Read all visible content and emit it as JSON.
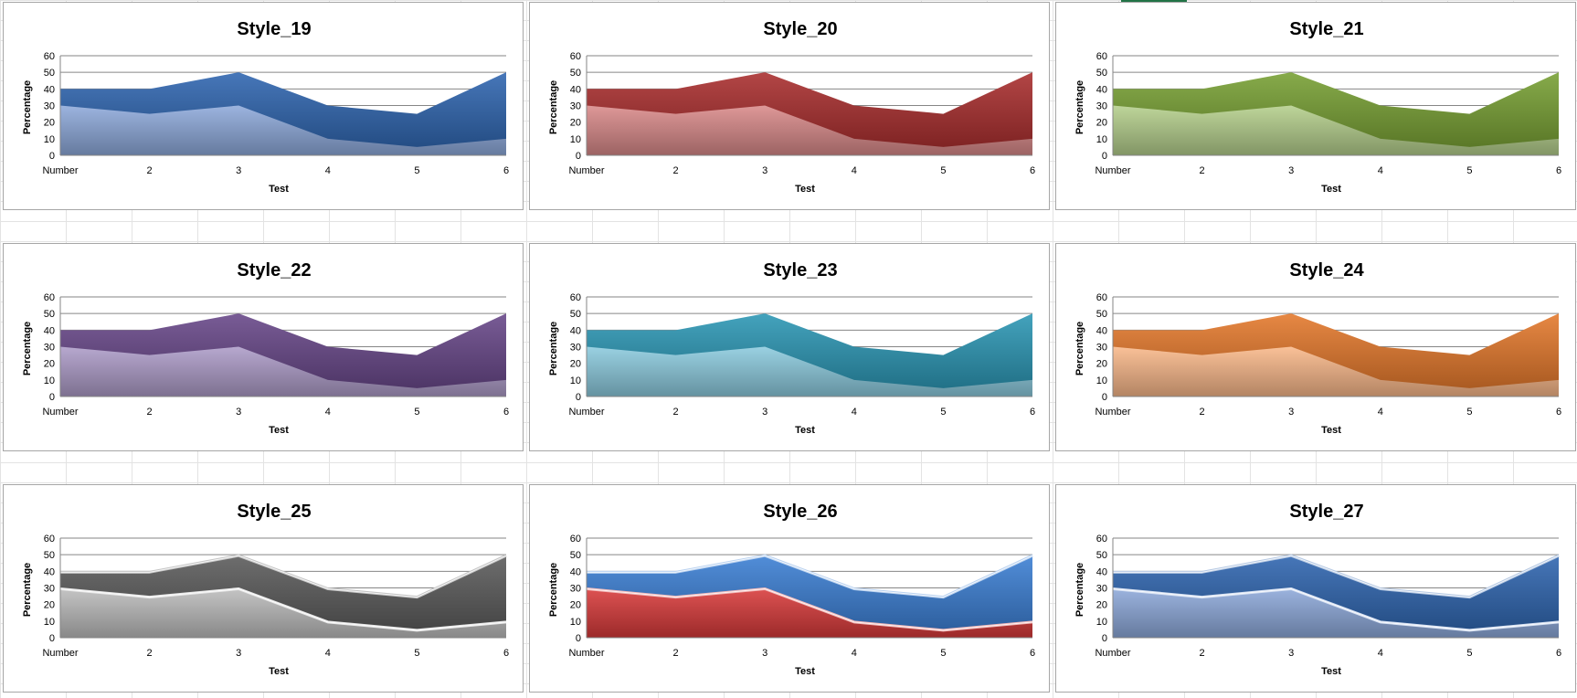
{
  "chart_data": [
    {
      "type": "area",
      "title": "Style_19",
      "xlabel": "Test",
      "ylabel": "Percentage",
      "categories": [
        "Number",
        "2",
        "3",
        "4",
        "5",
        "6"
      ],
      "ylim": [
        0,
        60
      ],
      "yticks": [
        0,
        10,
        20,
        30,
        40,
        50,
        60
      ],
      "grid": true,
      "series": [
        {
          "values": [
            30,
            25,
            30,
            10,
            5,
            10
          ],
          "color": "#8eaadb"
        },
        {
          "values": [
            40,
            40,
            50,
            30,
            25,
            50
          ],
          "color": "#2e65b0"
        }
      ]
    },
    {
      "type": "area",
      "title": "Style_20",
      "xlabel": "Test",
      "ylabel": "Percentage",
      "categories": [
        "Number",
        "2",
        "3",
        "4",
        "5",
        "6"
      ],
      "ylim": [
        0,
        60
      ],
      "yticks": [
        0,
        10,
        20,
        30,
        40,
        50,
        60
      ],
      "grid": true,
      "series": [
        {
          "values": [
            30,
            25,
            30,
            10,
            5,
            10
          ],
          "color": "#d98a8a"
        },
        {
          "values": [
            40,
            40,
            50,
            30,
            25,
            50
          ],
          "color": "#a92d2d"
        }
      ]
    },
    {
      "type": "area",
      "title": "Style_21",
      "xlabel": "Test",
      "ylabel": "Percentage",
      "categories": [
        "Number",
        "2",
        "3",
        "4",
        "5",
        "6"
      ],
      "ylim": [
        0,
        60
      ],
      "yticks": [
        0,
        10,
        20,
        30,
        40,
        50,
        60
      ],
      "grid": true,
      "series": [
        {
          "values": [
            30,
            25,
            30,
            10,
            5,
            10
          ],
          "color": "#b5cf8c"
        },
        {
          "values": [
            40,
            40,
            50,
            30,
            25,
            50
          ],
          "color": "#77a032"
        }
      ]
    },
    {
      "type": "area",
      "title": "Style_22",
      "xlabel": "Test",
      "ylabel": "Percentage",
      "categories": [
        "Number",
        "2",
        "3",
        "4",
        "5",
        "6"
      ],
      "ylim": [
        0,
        60
      ],
      "yticks": [
        0,
        10,
        20,
        30,
        40,
        50,
        60
      ],
      "grid": true,
      "series": [
        {
          "values": [
            30,
            25,
            30,
            10,
            5,
            10
          ],
          "color": "#ad9cc8"
        },
        {
          "values": [
            40,
            40,
            50,
            30,
            25,
            50
          ],
          "color": "#674688"
        }
      ]
    },
    {
      "type": "area",
      "title": "Style_23",
      "xlabel": "Test",
      "ylabel": "Percentage",
      "categories": [
        "Number",
        "2",
        "3",
        "4",
        "5",
        "6"
      ],
      "ylim": [
        0,
        60
      ],
      "yticks": [
        0,
        10,
        20,
        30,
        40,
        50,
        60
      ],
      "grid": true,
      "series": [
        {
          "values": [
            30,
            25,
            30,
            10,
            5,
            10
          ],
          "color": "#8ccbde"
        },
        {
          "values": [
            40,
            40,
            50,
            30,
            25,
            50
          ],
          "color": "#2a96b4"
        }
      ]
    },
    {
      "type": "area",
      "title": "Style_24",
      "xlabel": "Test",
      "ylabel": "Percentage",
      "categories": [
        "Number",
        "2",
        "3",
        "4",
        "5",
        "6"
      ],
      "ylim": [
        0,
        60
      ],
      "yticks": [
        0,
        10,
        20,
        30,
        40,
        50,
        60
      ],
      "grid": true,
      "series": [
        {
          "values": [
            30,
            25,
            30,
            10,
            5,
            10
          ],
          "color": "#f9b88a"
        },
        {
          "values": [
            40,
            40,
            50,
            30,
            25,
            50
          ],
          "color": "#e4782a"
        }
      ]
    },
    {
      "type": "area",
      "title": "Style_25",
      "xlabel": "Test",
      "ylabel": "Percentage",
      "categories": [
        "Number",
        "2",
        "3",
        "4",
        "5",
        "6"
      ],
      "ylim": [
        0,
        60
      ],
      "yticks": [
        0,
        10,
        20,
        30,
        40,
        50,
        60
      ],
      "grid": true,
      "series": [
        {
          "values": [
            30,
            25,
            30,
            10,
            5,
            10
          ],
          "color": "#bdbdbd"
        },
        {
          "values": [
            40,
            40,
            50,
            30,
            25,
            50
          ],
          "color": "#5a5a5a"
        }
      ]
    },
    {
      "type": "area",
      "title": "Style_26",
      "xlabel": "Test",
      "ylabel": "Percentage",
      "categories": [
        "Number",
        "2",
        "3",
        "4",
        "5",
        "6"
      ],
      "ylim": [
        0,
        60
      ],
      "yticks": [
        0,
        10,
        20,
        30,
        40,
        50,
        60
      ],
      "grid": true,
      "series": [
        {
          "values": [
            30,
            25,
            30,
            10,
            5,
            10
          ],
          "color": "#d93b3b"
        },
        {
          "values": [
            40,
            40,
            50,
            30,
            25,
            50
          ],
          "color": "#3a7fd4"
        }
      ]
    },
    {
      "type": "area",
      "title": "Style_27",
      "xlabel": "Test",
      "ylabel": "Percentage",
      "categories": [
        "Number",
        "2",
        "3",
        "4",
        "5",
        "6"
      ],
      "ylim": [
        0,
        60
      ],
      "yticks": [
        0,
        10,
        20,
        30,
        40,
        50,
        60
      ],
      "grid": true,
      "series": [
        {
          "values": [
            30,
            25,
            30,
            10,
            5,
            10
          ],
          "color": "#8eaadb"
        },
        {
          "values": [
            40,
            40,
            50,
            30,
            25,
            50
          ],
          "color": "#2e65b0"
        }
      ]
    }
  ]
}
